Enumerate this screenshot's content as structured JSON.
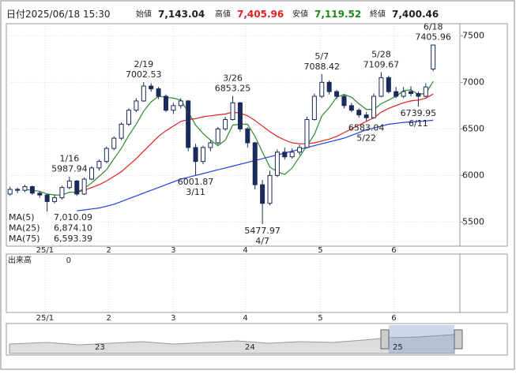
{
  "chart_data": {
    "type": "candlestick",
    "header": {
      "date_label": "日付",
      "datetime": "2025/06/18 15:30",
      "open_label": "始値",
      "open": "7,143.04",
      "high_label": "高値",
      "high": "7,405.96",
      "low_label": "安値",
      "low": "7,119.52",
      "close_label": "終値",
      "close": "7,400.46"
    },
    "candles": [
      [
        5800,
        5880,
        5780,
        5850
      ],
      [
        5850,
        5870,
        5810,
        5840
      ],
      [
        5840,
        5900,
        5820,
        5880
      ],
      [
        5880,
        5890,
        5790,
        5810
      ],
      [
        5810,
        5830,
        5760,
        5790
      ],
      [
        5790,
        5800,
        5566,
        5720
      ],
      [
        5720,
        5790,
        5700,
        5760
      ],
      [
        5760,
        5890,
        5740,
        5870
      ],
      [
        5870,
        5987.94,
        5850,
        5940
      ],
      [
        5940,
        5950,
        5780,
        5800
      ],
      [
        5800,
        5980,
        5790,
        5960
      ],
      [
        5960,
        6100,
        5950,
        6080
      ],
      [
        6080,
        6170,
        6050,
        6150
      ],
      [
        6150,
        6310,
        6130,
        6290
      ],
      [
        6290,
        6420,
        6270,
        6400
      ],
      [
        6400,
        6570,
        6380,
        6550
      ],
      [
        6550,
        6720,
        6530,
        6700
      ],
      [
        6700,
        6830,
        6680,
        6800
      ],
      [
        6800,
        7002.53,
        6790,
        6960
      ],
      [
        6960,
        6990,
        6900,
        6930
      ],
      [
        6930,
        6950,
        6820,
        6850
      ],
      [
        6850,
        6870,
        6680,
        6700
      ],
      [
        6700,
        6780,
        6660,
        6750
      ],
      [
        6750,
        6830,
        6720,
        6800
      ],
      [
        6800,
        6810,
        6260,
        6300
      ],
      [
        6300,
        6340,
        6001.87,
        6150
      ],
      [
        6150,
        6320,
        6120,
        6300
      ],
      [
        6300,
        6380,
        6260,
        6350
      ],
      [
        6350,
        6520,
        6330,
        6500
      ],
      [
        6500,
        6630,
        6480,
        6600
      ],
      [
        6600,
        6853.25,
        6590,
        6780
      ],
      [
        6780,
        6790,
        6470,
        6500
      ],
      [
        6500,
        6520,
        6300,
        6350
      ],
      [
        6350,
        6360,
        5850,
        5900
      ],
      [
        5900,
        5950,
        5477.97,
        5700
      ],
      [
        5700,
        6050,
        5680,
        6000
      ],
      [
        6000,
        6280,
        5980,
        6250
      ],
      [
        6250,
        6300,
        6170,
        6200
      ],
      [
        6200,
        6290,
        6180,
        6250
      ],
      [
        6250,
        6330,
        6220,
        6300
      ],
      [
        6300,
        6630,
        6290,
        6600
      ],
      [
        6600,
        6880,
        6590,
        6850
      ],
      [
        6850,
        7088.42,
        6830,
        7000
      ],
      [
        7000,
        7020,
        6870,
        6900
      ],
      [
        6900,
        6920,
        6820,
        6850
      ],
      [
        6850,
        6870,
        6720,
        6750
      ],
      [
        6750,
        6780,
        6680,
        6700
      ],
      [
        6700,
        6720,
        6620,
        6650
      ],
      [
        6650,
        6680,
        6583.04,
        6620
      ],
      [
        6620,
        6880,
        6610,
        6850
      ],
      [
        6850,
        7109.67,
        6840,
        7050
      ],
      [
        7050,
        7070,
        6880,
        6900
      ],
      [
        6900,
        6950,
        6830,
        6850
      ],
      [
        6850,
        6950,
        6830,
        6900
      ],
      [
        6900,
        6960,
        6850,
        6880
      ],
      [
        6880,
        6900,
        6739.95,
        6850
      ],
      [
        6850,
        6990,
        6840,
        6950
      ],
      [
        7143.04,
        7405.96,
        7119.52,
        7400.46
      ]
    ],
    "up_color": "#ffffff",
    "down_color": "#1a2a5a",
    "series": [
      {
        "name": "MA(5)",
        "color": "#2e8b2e",
        "legend_value": "7,010.09",
        "values": [
          null,
          null,
          5850,
          5840,
          5830,
          5800,
          5790,
          5790,
          5820,
          5820,
          5860,
          5920,
          5990,
          6060,
          6180,
          6290,
          6430,
          6550,
          6690,
          6790,
          6850,
          6840,
          6830,
          6810,
          6680,
          6540,
          6450,
          6380,
          6320,
          6380,
          6540,
          6550,
          6550,
          6420,
          6250,
          6090,
          6040,
          6010,
          6080,
          6200,
          6320,
          6440,
          6640,
          6730,
          6840,
          6870,
          6840,
          6770,
          6710,
          6710,
          6770,
          6810,
          6850,
          6910,
          6920,
          6870,
          6880,
          7010
        ]
      },
      {
        "name": "MA(25)",
        "color": "#e02020",
        "legend_value": "6,874.10",
        "values": [
          null,
          null,
          null,
          null,
          null,
          null,
          null,
          null,
          null,
          5820,
          5840,
          5870,
          5900,
          5940,
          5990,
          6040,
          6110,
          6180,
          6260,
          6340,
          6420,
          6480,
          6530,
          6580,
          6600,
          6610,
          6630,
          6640,
          6650,
          6660,
          6680,
          6670,
          6640,
          6590,
          6530,
          6470,
          6420,
          6380,
          6350,
          6340,
          6340,
          6350,
          6370,
          6390,
          6420,
          6460,
          6500,
          6540,
          6580,
          6620,
          6680,
          6720,
          6750,
          6780,
          6800,
          6810,
          6830,
          6874
        ]
      },
      {
        "name": "MA(75)",
        "color": "#2040e0",
        "legend_value": "6,593.39",
        "values": [
          null,
          null,
          null,
          null,
          null,
          null,
          null,
          null,
          null,
          5620,
          5630,
          5640,
          5650,
          5670,
          5690,
          5720,
          5750,
          5780,
          5810,
          5840,
          5870,
          5900,
          5930,
          5960,
          5980,
          6000,
          6020,
          6040,
          6060,
          6080,
          6100,
          6120,
          6140,
          6160,
          6180,
          6200,
          6220,
          6240,
          6260,
          6280,
          6300,
          6320,
          6340,
          6360,
          6380,
          6400,
          6430,
          6460,
          6490,
          6510,
          6530,
          6550,
          6560,
          6570,
          6575,
          6580,
          6585,
          6593
        ]
      }
    ],
    "annotations": [
      {
        "date": "1/16",
        "value": 5987.94
      },
      {
        "date": "2/19",
        "value": 7002.53
      },
      {
        "date": "3/26",
        "value": 6853.25
      },
      {
        "date": "3/11",
        "value": 6001.87
      },
      {
        "date": "4/7",
        "value": 5477.97
      },
      {
        "date": "5/7",
        "value": 7088.42
      },
      {
        "date": "5/28",
        "value": 7109.67
      },
      {
        "date": "5/22",
        "value": 6583.04
      },
      {
        "date": "6/11",
        "value": 6739.95
      },
      {
        "date": "6/18",
        "value": 7405.96
      }
    ],
    "ylim": [
      5240,
      7630
    ],
    "yticks": [
      5500,
      6000,
      6500,
      7000,
      7500
    ],
    "xlim": [
      -0.5,
      60.6
    ],
    "xticks": [
      {
        "value": 4.7,
        "label": "25/1"
      },
      {
        "value": 13.3,
        "label": "2"
      },
      {
        "value": 22,
        "label": "3"
      },
      {
        "value": 31.7,
        "label": "4"
      },
      {
        "value": 41.8,
        "label": "5"
      },
      {
        "value": 51.7,
        "label": "6"
      }
    ],
    "volume_label": "出来高",
    "volume_value": 0,
    "navigator_labels": [
      "23",
      "24",
      "25"
    ],
    "grid": true
  }
}
